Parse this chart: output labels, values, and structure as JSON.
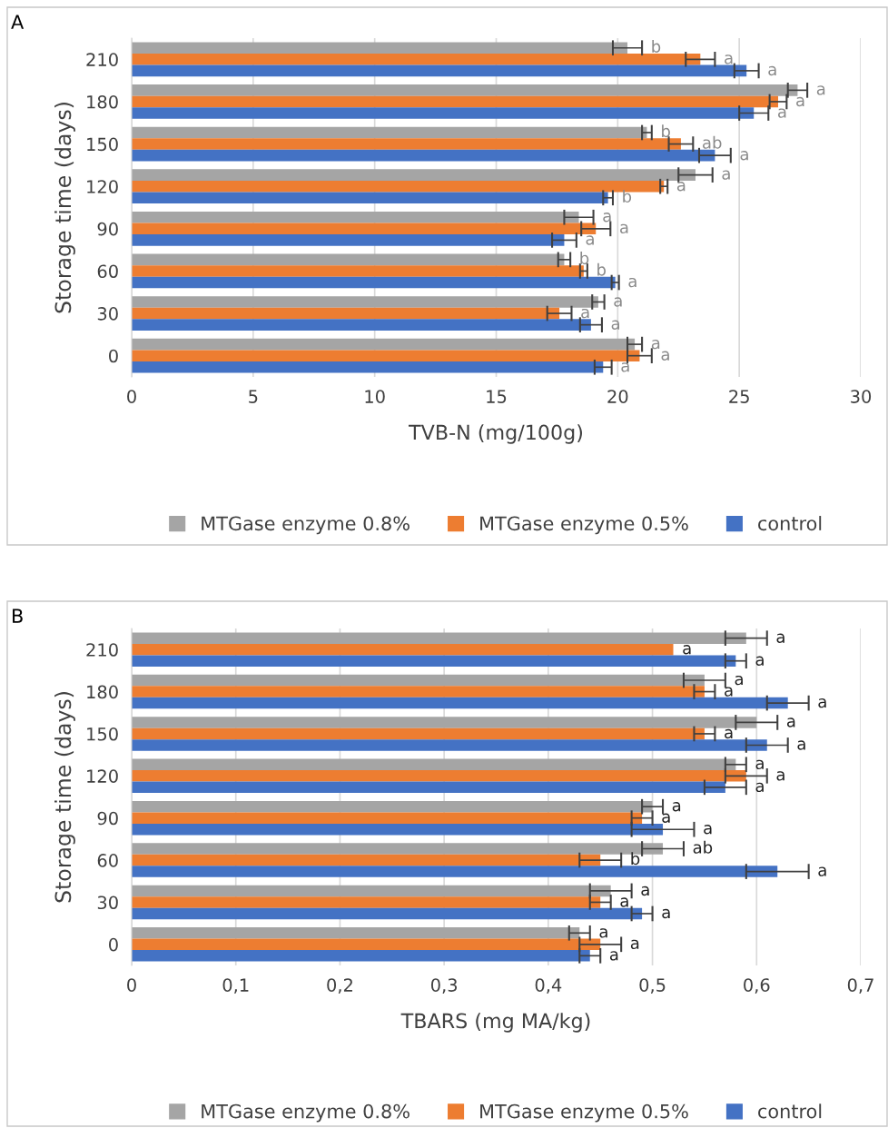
{
  "chart_data": [
    {
      "type": "bar",
      "orientation": "horizontal",
      "annotations": [
        "A"
      ],
      "ylabel": "Storage time (days)",
      "xlabel": "TVB-N (mg/100g)",
      "categories": [
        "210",
        "180",
        "150",
        "120",
        "90",
        "60",
        "30",
        "0"
      ],
      "xlim": [
        0,
        30
      ],
      "xticks": [
        0,
        5,
        10,
        15,
        20,
        25,
        30
      ],
      "grid": "x",
      "legend": "bottom",
      "series": [
        {
          "name": "MTGase enzyme 0.8%",
          "color": "#a5a5a5",
          "values": [
            20.4,
            27.4,
            21.2,
            23.2,
            18.4,
            17.8,
            19.2,
            20.7
          ],
          "errors": [
            0.6,
            0.4,
            0.2,
            0.7,
            0.6,
            0.25,
            0.25,
            0.3
          ],
          "value_labels": [
            "b",
            "a",
            "b",
            "a",
            "a",
            "b",
            "a",
            "a"
          ]
        },
        {
          "name": "MTGase enzyme 0.5%",
          "color": "#ed7d31",
          "values": [
            23.4,
            26.6,
            22.6,
            21.9,
            19.1,
            18.6,
            17.6,
            20.9
          ],
          "errors": [
            0.6,
            0.35,
            0.5,
            0.15,
            0.6,
            0.15,
            0.5,
            0.5
          ],
          "value_labels": [
            "a",
            "a",
            "ab",
            "a",
            "a",
            "b",
            "a",
            "a"
          ]
        },
        {
          "name": "control",
          "color": "#4472c4",
          "values": [
            25.3,
            25.6,
            24.0,
            19.6,
            17.8,
            19.9,
            18.9,
            19.4
          ],
          "errors": [
            0.5,
            0.6,
            0.65,
            0.2,
            0.5,
            0.15,
            0.45,
            0.35
          ],
          "value_labels": [
            "a",
            "a",
            "a",
            "b",
            "a",
            "a",
            "a",
            "a"
          ]
        }
      ]
    },
    {
      "type": "bar",
      "orientation": "horizontal",
      "annotations": [
        "B"
      ],
      "ylabel": "Storage time (days)",
      "xlabel": "TBARS (mg MA/kg)",
      "categories": [
        "210",
        "180",
        "150",
        "120",
        "90",
        "60",
        "30",
        "0"
      ],
      "xlim": [
        0,
        0.7
      ],
      "xticks": [
        0,
        {
          "value": 0.1,
          "label": "0,1"
        },
        {
          "value": 0.2,
          "label": "0,2"
        },
        {
          "value": 0.3,
          "label": "0,3"
        },
        {
          "value": 0.4,
          "label": "0,4"
        },
        {
          "value": 0.5,
          "label": "0,5"
        },
        {
          "value": 0.6,
          "label": "0,6"
        },
        {
          "value": 0.7,
          "label": "0,7"
        }
      ],
      "grid": "x",
      "legend": "bottom",
      "series": [
        {
          "name": "MTGase enzyme 0.8%",
          "color": "#a5a5a5",
          "values": [
            0.59,
            0.55,
            0.6,
            0.58,
            0.5,
            0.51,
            0.46,
            0.43
          ],
          "errors": [
            0.02,
            0.02,
            0.02,
            0.01,
            0.01,
            0.02,
            0.02,
            0.01
          ],
          "value_labels": [
            "a",
            "a",
            "a",
            "a",
            "a",
            "ab",
            "a",
            "a"
          ]
        },
        {
          "name": "MTGase enzyme 0.5%",
          "color": "#ed7d31",
          "values": [
            0.52,
            0.55,
            0.55,
            0.59,
            0.49,
            0.45,
            0.45,
            0.45
          ],
          "errors": [
            null,
            0.01,
            0.01,
            0.02,
            0.01,
            0.02,
            0.01,
            0.02
          ],
          "value_labels": [
            "a",
            "a",
            "a",
            "a",
            "a",
            "b",
            "a",
            "a"
          ]
        },
        {
          "name": "control",
          "color": "#4472c4",
          "values": [
            0.58,
            0.63,
            0.61,
            0.57,
            0.51,
            0.62,
            0.49,
            0.44
          ],
          "errors": [
            0.01,
            0.02,
            0.02,
            0.02,
            0.03,
            0.03,
            0.01,
            0.01
          ],
          "value_labels": [
            "a",
            "a",
            "a",
            "a",
            "a",
            "a",
            "a",
            "a"
          ]
        }
      ]
    }
  ]
}
